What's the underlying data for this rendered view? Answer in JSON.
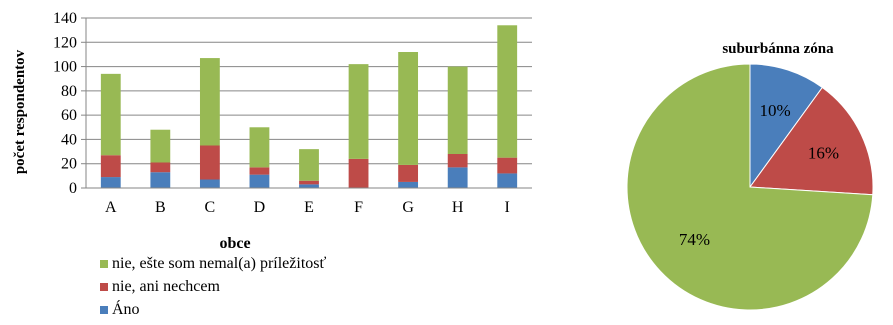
{
  "chart_data": [
    {
      "type": "bar",
      "stacked": true,
      "xlabel": "obce",
      "ylabel": "počet respondentov",
      "ylim": [
        0,
        140
      ],
      "ytick_step": 20,
      "grid": true,
      "legend_placement": "bottom",
      "categories": [
        "A",
        "B",
        "C",
        "D",
        "E",
        "F",
        "G",
        "H",
        "I"
      ],
      "series": [
        {
          "name": "Áno",
          "color": "#4a7ebb",
          "values": [
            9,
            13,
            7,
            11,
            3,
            0,
            5,
            17,
            12
          ]
        },
        {
          "name": "nie, ani nechcem",
          "color": "#be4b48",
          "values": [
            18,
            8,
            28,
            6,
            3,
            24,
            14,
            11,
            13
          ]
        },
        {
          "name": "nie, ešte som nemal(a) príležitosť",
          "color": "#98b954",
          "values": [
            67,
            27,
            72,
            33,
            26,
            78,
            93,
            72,
            109
          ]
        }
      ],
      "legend_order": [
        "nie, ešte som nemal(a) príležitosť",
        "nie, ani nechcem",
        "Áno"
      ]
    },
    {
      "type": "pie",
      "title": "suburbánna zóna",
      "slices": [
        {
          "label": "10%",
          "value": 10,
          "color": "#4a7ebb"
        },
        {
          "label": "16%",
          "value": 16,
          "color": "#be4b48"
        },
        {
          "label": "74%",
          "value": 74,
          "color": "#98b954"
        }
      ]
    }
  ]
}
